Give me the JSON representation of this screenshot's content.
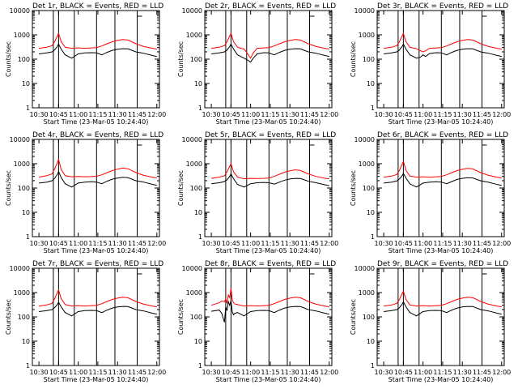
{
  "figure": {
    "x_tick_labels": [
      "10:30",
      "10:45",
      "11:00",
      "11:15",
      "11:30",
      "11:45",
      "12:00"
    ],
    "x_title": "Start Time (23-Mar-05 10:24:40)",
    "y_tick_labels": [
      "1",
      "10",
      "100",
      "1000",
      "10000"
    ],
    "y_title": "Counts/sec",
    "colors": {
      "events": "#000000",
      "lld": "#ff0000"
    }
  },
  "chart_data": [
    {
      "type": "line",
      "title": "Det 1r, BLACK = Events, RED = LLD",
      "xlabel": "Start Time (23-Mar-05 10:24:40)",
      "ylabel": "Counts/sec",
      "x_unit": "minutes after 10:00",
      "x": [
        30,
        36,
        40,
        42,
        44,
        45,
        47,
        50,
        55,
        60,
        65,
        70,
        74,
        78,
        82,
        86,
        90,
        94,
        98,
        104,
        110,
        117,
        120
      ],
      "ylim": [
        1,
        10000
      ],
      "yscale": "log",
      "vlines": [
        41,
        45,
        57,
        74,
        88,
        105
      ],
      "series": [
        {
          "name": "BLACK = Events",
          "color": "#000000",
          "values": [
            165,
            180,
            200,
            240,
            330,
            420,
            260,
            150,
            110,
            165,
            180,
            185,
            180,
            150,
            190,
            230,
            255,
            270,
            265,
            200,
            175,
            140,
            130
          ]
        },
        {
          "name": "RED = LLD",
          "color": "#ff0000",
          "values": [
            280,
            310,
            360,
            520,
            900,
            1150,
            520,
            310,
            280,
            290,
            280,
            290,
            300,
            350,
            430,
            520,
            590,
            640,
            610,
            430,
            330,
            275,
            260
          ]
        }
      ]
    },
    {
      "type": "line",
      "title": "Det 2r, BLACK = Events, RED = LLD",
      "xlabel": "Start Time (23-Mar-05 10:24:40)",
      "ylabel": "Counts/sec",
      "x_unit": "minutes after 10:00",
      "x": [
        30,
        36,
        40,
        42,
        44,
        45,
        47,
        50,
        55,
        58,
        60,
        62,
        65,
        70,
        74,
        78,
        82,
        86,
        90,
        94,
        98,
        104,
        110,
        117,
        120
      ],
      "ylim": [
        1,
        10000
      ],
      "yscale": "log",
      "vlines": [
        41,
        45,
        57,
        74,
        88,
        105
      ],
      "series": [
        {
          "name": "BLACK = Events",
          "color": "#000000",
          "values": [
            165,
            180,
            200,
            240,
            330,
            420,
            260,
            150,
            110,
            90,
            75,
            110,
            165,
            185,
            180,
            150,
            190,
            230,
            255,
            270,
            265,
            200,
            175,
            140,
            130
          ]
        },
        {
          "name": "RED = LLD",
          "color": "#ff0000",
          "values": [
            280,
            310,
            360,
            520,
            900,
            1150,
            520,
            310,
            260,
            160,
            110,
            180,
            280,
            290,
            300,
            350,
            430,
            520,
            590,
            640,
            610,
            430,
            330,
            275,
            260
          ]
        }
      ]
    },
    {
      "type": "line",
      "title": "Det 3r, BLACK = Events, RED = LLD",
      "xlabel": "Start Time (23-Mar-05 10:24:40)",
      "ylabel": "Counts/sec",
      "x_unit": "minutes after 10:00",
      "x": [
        30,
        36,
        40,
        42,
        44,
        45,
        47,
        50,
        55,
        58,
        60,
        62,
        65,
        70,
        74,
        78,
        82,
        86,
        90,
        94,
        98,
        104,
        110,
        117,
        120
      ],
      "ylim": [
        1,
        10000
      ],
      "yscale": "log",
      "vlines": [
        41,
        45,
        57,
        74,
        88,
        105
      ],
      "series": [
        {
          "name": "BLACK = Events",
          "color": "#000000",
          "values": [
            165,
            180,
            200,
            240,
            330,
            420,
            260,
            150,
            110,
            120,
            150,
            130,
            170,
            185,
            180,
            150,
            190,
            230,
            255,
            270,
            265,
            200,
            175,
            140,
            130
          ]
        },
        {
          "name": "RED = LLD",
          "color": "#ff0000",
          "values": [
            280,
            310,
            360,
            520,
            900,
            1150,
            520,
            310,
            270,
            220,
            200,
            220,
            280,
            290,
            300,
            350,
            430,
            520,
            590,
            640,
            610,
            430,
            330,
            275,
            260
          ]
        }
      ]
    },
    {
      "type": "line",
      "title": "Det 4r, BLACK = Events, RED = LLD",
      "xlabel": "Start Time (23-Mar-05 10:24:40)",
      "ylabel": "Counts/sec",
      "x_unit": "minutes after 10:00",
      "x": [
        30,
        36,
        40,
        42,
        44,
        45,
        47,
        50,
        55,
        60,
        65,
        70,
        74,
        78,
        82,
        86,
        90,
        94,
        98,
        104,
        110,
        117,
        120
      ],
      "ylim": [
        1,
        10000
      ],
      "yscale": "log",
      "vlines": [
        41,
        45,
        57,
        74,
        88,
        105
      ],
      "series": [
        {
          "name": "BLACK = Events",
          "color": "#000000",
          "values": [
            160,
            175,
            200,
            250,
            360,
            480,
            270,
            150,
            110,
            160,
            175,
            180,
            175,
            150,
            190,
            230,
            255,
            275,
            265,
            200,
            175,
            140,
            130
          ]
        },
        {
          "name": "RED = LLD",
          "color": "#ff0000",
          "values": [
            280,
            320,
            380,
            600,
            1100,
            1500,
            580,
            320,
            290,
            300,
            290,
            295,
            305,
            350,
            430,
            520,
            600,
            660,
            620,
            430,
            330,
            275,
            260
          ]
        }
      ]
    },
    {
      "type": "line",
      "title": "Det 5r, BLACK = Events, RED = LLD",
      "xlabel": "Start Time (23-Mar-05 10:24:40)",
      "ylabel": "Counts/sec",
      "x_unit": "minutes after 10:00",
      "x": [
        30,
        36,
        40,
        42,
        44,
        45,
        47,
        50,
        55,
        60,
        65,
        70,
        74,
        78,
        82,
        86,
        90,
        94,
        98,
        104,
        110,
        117,
        120
      ],
      "ylim": [
        1,
        10000
      ],
      "yscale": "log",
      "vlines": [
        41,
        45,
        57,
        74,
        88,
        105
      ],
      "series": [
        {
          "name": "BLACK = Events",
          "color": "#000000",
          "values": [
            150,
            165,
            185,
            220,
            300,
            380,
            240,
            140,
            110,
            150,
            165,
            170,
            165,
            145,
            175,
            210,
            235,
            250,
            245,
            190,
            165,
            135,
            125
          ]
        },
        {
          "name": "RED = LLD",
          "color": "#ff0000",
          "values": [
            250,
            280,
            320,
            460,
            800,
            1000,
            460,
            280,
            240,
            250,
            245,
            250,
            260,
            300,
            370,
            450,
            510,
            560,
            530,
            380,
            300,
            250,
            240
          ]
        }
      ]
    },
    {
      "type": "line",
      "title": "Det 6r, BLACK = Events, RED = LLD",
      "xlabel": "Start Time (23-Mar-05 10:24:40)",
      "ylabel": "Counts/sec",
      "x_unit": "minutes after 10:00",
      "x": [
        30,
        36,
        40,
        42,
        44,
        45,
        47,
        50,
        55,
        60,
        65,
        70,
        74,
        78,
        82,
        86,
        90,
        94,
        98,
        104,
        110,
        117,
        120
      ],
      "ylim": [
        1,
        10000
      ],
      "yscale": "log",
      "vlines": [
        41,
        45,
        57,
        74,
        88,
        105
      ],
      "series": [
        {
          "name": "BLACK = Events",
          "color": "#000000",
          "values": [
            160,
            175,
            195,
            235,
            320,
            400,
            255,
            148,
            110,
            160,
            175,
            180,
            175,
            150,
            185,
            225,
            250,
            265,
            260,
            198,
            172,
            138,
            128
          ]
        },
        {
          "name": "RED = LLD",
          "color": "#ff0000",
          "values": [
            280,
            310,
            360,
            530,
            950,
            1250,
            530,
            310,
            280,
            290,
            280,
            290,
            300,
            350,
            430,
            520,
            590,
            640,
            610,
            430,
            330,
            275,
            260
          ]
        }
      ]
    },
    {
      "type": "line",
      "title": "Det 7r, BLACK = Events, RED = LLD",
      "xlabel": "Start Time (23-Mar-05 10:24:40)",
      "ylabel": "Counts/sec",
      "x_unit": "minutes after 10:00",
      "x": [
        30,
        36,
        40,
        42,
        44,
        45,
        47,
        50,
        55,
        60,
        65,
        70,
        74,
        78,
        82,
        86,
        90,
        94,
        98,
        104,
        110,
        117,
        120
      ],
      "ylim": [
        1,
        10000
      ],
      "yscale": "log",
      "vlines": [
        41,
        45,
        57,
        74,
        88,
        105
      ],
      "series": [
        {
          "name": "BLACK = Events",
          "color": "#000000",
          "values": [
            165,
            180,
            200,
            240,
            320,
            400,
            260,
            150,
            110,
            165,
            180,
            185,
            180,
            150,
            190,
            230,
            255,
            270,
            265,
            200,
            175,
            140,
            130
          ]
        },
        {
          "name": "RED = LLD",
          "color": "#ff0000",
          "values": [
            280,
            310,
            360,
            560,
            1000,
            1300,
            560,
            320,
            280,
            290,
            280,
            290,
            300,
            350,
            430,
            520,
            590,
            640,
            610,
            430,
            330,
            275,
            260
          ]
        }
      ]
    },
    {
      "type": "line",
      "title": "Det 8r, BLACK = Events, RED = LLD",
      "xlabel": "Start Time (23-Mar-05 10:24:40)",
      "ylabel": "Counts/sec",
      "x_unit": "minutes after 10:00",
      "x": [
        30,
        36,
        38,
        40,
        41,
        42,
        43,
        44,
        45,
        46,
        47,
        48,
        50,
        55,
        60,
        65,
        70,
        74,
        78,
        82,
        86,
        90,
        94,
        98,
        104,
        110,
        117,
        120
      ],
      "ylim": [
        1,
        10000
      ],
      "yscale": "log",
      "vlines": [
        41,
        45,
        57,
        74,
        88,
        105
      ],
      "series": [
        {
          "name": "BLACK = Events",
          "color": "#000000",
          "values": [
            170,
            190,
            140,
            60,
            260,
            180,
            420,
            300,
            480,
            160,
            120,
            140,
            150,
            110,
            165,
            180,
            185,
            180,
            150,
            190,
            230,
            255,
            270,
            265,
            200,
            175,
            140,
            130
          ]
        },
        {
          "name": "RED = LLD",
          "color": "#ff0000",
          "values": [
            300,
            380,
            450,
            420,
            550,
            360,
            800,
            620,
            1500,
            500,
            380,
            340,
            320,
            280,
            290,
            280,
            290,
            300,
            350,
            430,
            520,
            590,
            640,
            610,
            430,
            330,
            275,
            260
          ]
        }
      ]
    },
    {
      "type": "line",
      "title": "Det 9r, BLACK = Events, RED = LLD",
      "xlabel": "Start Time (23-Mar-05 10:24:40)",
      "ylabel": "Counts/sec",
      "x_unit": "minutes after 10:00",
      "x": [
        30,
        36,
        40,
        42,
        44,
        45,
        47,
        50,
        55,
        60,
        65,
        70,
        74,
        78,
        82,
        86,
        90,
        94,
        98,
        104,
        110,
        117,
        120
      ],
      "ylim": [
        1,
        10000
      ],
      "yscale": "log",
      "vlines": [
        41,
        45,
        57,
        74,
        88,
        105
      ],
      "series": [
        {
          "name": "BLACK = Events",
          "color": "#000000",
          "values": [
            165,
            180,
            200,
            240,
            330,
            420,
            260,
            150,
            110,
            165,
            180,
            185,
            180,
            150,
            190,
            230,
            255,
            270,
            265,
            200,
            175,
            140,
            130
          ]
        },
        {
          "name": "RED = LLD",
          "color": "#ff0000",
          "values": [
            280,
            310,
            360,
            520,
            900,
            1150,
            520,
            310,
            280,
            290,
            280,
            290,
            300,
            350,
            430,
            520,
            590,
            640,
            610,
            430,
            330,
            275,
            260
          ]
        }
      ]
    }
  ]
}
